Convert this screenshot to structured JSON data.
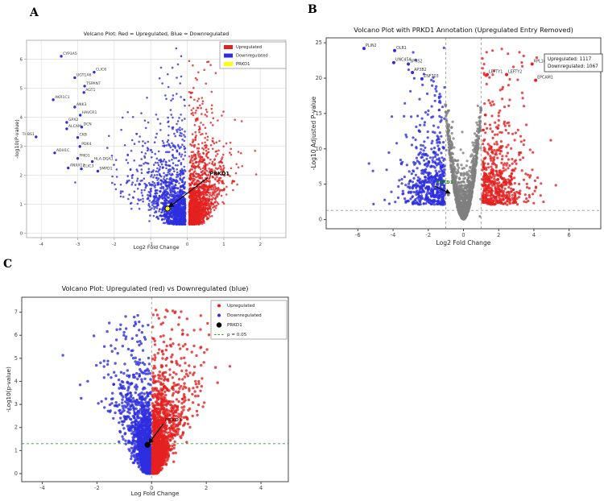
{
  "figure": {
    "panel_labels": [
      "A",
      "B",
      "C"
    ]
  },
  "colors": {
    "up": "#e32020",
    "down": "#2e2ee0",
    "neutral": "#7f7f7f",
    "prkd1_yellow": "#ffff00",
    "prkd1_black": "#000000",
    "prkd1_green_text": "#1a7d1a",
    "prkd1_darkred_text": "#8b0000",
    "threshold_gray": "#999999",
    "threshold_green": "#2ca02c",
    "grid": "#e3e3e3"
  },
  "chart_data": [
    {
      "id": "A",
      "type": "scatter",
      "title": "Volcano Plot: Red = Upregulated, Blue = Downregulated",
      "xlabel": "Log2 Fold Change",
      "ylabel": "-log10(P-value)",
      "xlim": [
        -4.4,
        2.7
      ],
      "ylim": [
        -0.15,
        6.65
      ],
      "xticks": [
        -4,
        -3,
        -2,
        -1,
        0,
        1,
        2
      ],
      "yticks": [
        0,
        1,
        2,
        3,
        4,
        5,
        6
      ],
      "grid": true,
      "legend": {
        "position": "top-right",
        "items": [
          {
            "label": "Upregulated",
            "marker": "patch",
            "color": "#e32020"
          },
          {
            "label": "Downregulated",
            "marker": "patch",
            "color": "#2e2ee0"
          },
          {
            "label": "PRKD1",
            "marker": "patch",
            "color": "#ffff00"
          }
        ]
      },
      "prkd1": {
        "label": "PRKD1",
        "label_color": "#000000",
        "label_x": 0.61,
        "label_y": 2.0,
        "point_x": -0.54,
        "point_y": 0.85,
        "marker_color": "#ffff00",
        "arrow": true
      },
      "labeled_points": [
        {
          "gene": "CYP3A5",
          "x": -3.45,
          "y": 6.1,
          "color": "down"
        },
        {
          "gene": "CLIC6",
          "x": -2.55,
          "y": 5.55,
          "color": "down"
        },
        {
          "gene": "UGT1A6",
          "x": -3.08,
          "y": 5.36,
          "color": "down"
        },
        {
          "gene": "TSPAN7",
          "x": -2.81,
          "y": 5.07,
          "color": "down"
        },
        {
          "gene": "AGT1",
          "x": -2.83,
          "y": 4.85,
          "color": "down"
        },
        {
          "gene": "AKR1C1",
          "x": -3.67,
          "y": 4.6,
          "color": "down"
        },
        {
          "gene": "ANK3",
          "x": -3.08,
          "y": 4.35,
          "color": "down"
        },
        {
          "gene": "HAVCR1",
          "x": -2.93,
          "y": 4.07,
          "color": "down"
        },
        {
          "gene": "GPX2",
          "x": -3.3,
          "y": 3.82,
          "color": "down"
        },
        {
          "gene": "DCN",
          "x": -2.89,
          "y": 3.66,
          "color": "down"
        },
        {
          "gene": "ALCAM",
          "x": -3.3,
          "y": 3.6,
          "color": "down"
        },
        {
          "gene": "THBS1",
          "x": -4.14,
          "y": 3.32,
          "color": "down",
          "anchor": "end"
        },
        {
          "gene": "CKB",
          "x": -3.0,
          "y": 3.3,
          "color": "down"
        },
        {
          "gene": "PDK4",
          "x": -2.94,
          "y": 2.99,
          "color": "down"
        },
        {
          "gene": "ADH1C",
          "x": -3.63,
          "y": 2.77,
          "color": "down"
        },
        {
          "gene": "FMO1",
          "x": -3.0,
          "y": 2.58,
          "color": "down"
        },
        {
          "gene": "HLA-DQA1",
          "x": -2.6,
          "y": 2.47,
          "color": "down"
        },
        {
          "gene": "ANXA13",
          "x": -3.26,
          "y": 2.25,
          "color": "down"
        },
        {
          "gene": "CLIC3",
          "x": -2.9,
          "y": 2.22,
          "color": "down"
        },
        {
          "gene": "SMPD1",
          "x": -2.45,
          "y": 2.14,
          "color": "down"
        },
        {
          "gene": "PTMA",
          "x": 1.0,
          "y": 6.05,
          "color": "up"
        }
      ],
      "generator": {
        "seed": 41,
        "clusters": [
          {
            "kind": "wedgeA",
            "color": "down",
            "side": -1,
            "n": 1400,
            "x_scale": 1.25,
            "x_abs_max": 4.4
          },
          {
            "kind": "wedgeA",
            "color": "up",
            "side": 1,
            "n": 1600,
            "x_scale": 0.8,
            "x_abs_max": 2.6
          }
        ]
      }
    },
    {
      "id": "B",
      "type": "scatter",
      "title": "Volcano Plot with PRKD1 Annotation (Upregulated Entry Removed)",
      "xlabel": "Log2 Fold Change",
      "ylabel": "-Log10 Adjusted P-value",
      "xlim": [
        -7.8,
        7.8
      ],
      "ylim": [
        -1.3,
        25.7
      ],
      "xticks": [
        -6,
        -4,
        -2,
        0,
        2,
        4,
        6
      ],
      "yticks": [
        0,
        5,
        10,
        15,
        20,
        25
      ],
      "grid": false,
      "vlines": {
        "x": [
          -1,
          1
        ],
        "color": "#999999",
        "style": "dashed"
      },
      "hlines": {
        "y": [
          1.3
        ],
        "color": "#999999",
        "style": "dashed"
      },
      "annotation_box": {
        "lines": [
          "Upregulated: 1117",
          "Downregulated: 1067"
        ]
      },
      "prkd1": {
        "label": "PRKD1",
        "label_color": "#1a7d1a",
        "label_x": -1.55,
        "label_y": 5.1,
        "point_x": -0.86,
        "point_y": 3.5,
        "marker_color": "#7f7f7f",
        "arrow": true
      },
      "labeled_points": [
        {
          "gene": "PLIN2",
          "x": -5.65,
          "y": 24.2,
          "color": "down"
        },
        {
          "gene": "OLR1",
          "x": -3.91,
          "y": 23.9,
          "color": "down"
        },
        {
          "gene": "UNC45A",
          "x": -3.96,
          "y": 22.2,
          "color": "down"
        },
        {
          "gene": "SPNS2",
          "x": -3.13,
          "y": 22.0,
          "color": "down"
        },
        {
          "gene": "AP3B2",
          "x": -2.9,
          "y": 20.8,
          "color": "down"
        },
        {
          "gene": "ZNF703",
          "x": -2.36,
          "y": 19.9,
          "color": "down"
        },
        {
          "gene": "LEFTY1",
          "x": 1.35,
          "y": 20.5,
          "color": "up"
        },
        {
          "gene": "LEFTY2",
          "x": 2.45,
          "y": 20.5,
          "color": "up"
        },
        {
          "gene": "RPL18",
          "x": 3.9,
          "y": 22.0,
          "color": "up"
        },
        {
          "gene": "EPCAM1",
          "x": 4.1,
          "y": 19.7,
          "color": "up"
        }
      ],
      "generator": {
        "seed": 77,
        "clusters": [
          {
            "kind": "sideB",
            "color": "down",
            "side": -1,
            "n": 560,
            "x_scale": 1.15,
            "x_abs_max": 7.2
          },
          {
            "kind": "sideB",
            "color": "up",
            "side": 1,
            "n": 580,
            "x_scale": 1.25,
            "x_abs_max": 7.4
          },
          {
            "kind": "grayB",
            "color": "neutral",
            "n": 1300,
            "a": 14.5,
            "p": 2.0,
            "noise": 1.6,
            "y_max": 16.5
          }
        ]
      }
    },
    {
      "id": "C",
      "type": "scatter",
      "title": "Volcano Plot: Upregulated (red) vs Downregulated (blue)",
      "xlabel": "Log Fold Change",
      "ylabel": "-Log10(p-value)",
      "xlim": [
        -4.75,
        5.0
      ],
      "ylim": [
        -0.35,
        7.65
      ],
      "xticks": [
        -4,
        -2,
        0,
        2,
        4
      ],
      "yticks": [
        0,
        1,
        2,
        3,
        4,
        5,
        6,
        7
      ],
      "grid": false,
      "vlines": {
        "x": [
          0
        ],
        "color": "#999999",
        "style": "dashed"
      },
      "hlines": {
        "y": [
          1.3
        ],
        "color": "#2ca02c",
        "style": "dashed"
      },
      "legend": {
        "position": "top-right",
        "items": [
          {
            "label": "Upregulated",
            "marker": "dot",
            "color": "#e32020"
          },
          {
            "label": "Downregulated",
            "marker": "dot",
            "color": "#2e2ee0"
          },
          {
            "label": "PRKD1",
            "marker": "dot-large",
            "color": "#000000"
          },
          {
            "label": "p = 0.05",
            "marker": "dashed",
            "color": "#2ca02c"
          }
        ]
      },
      "prkd1": {
        "label": "PRKD1",
        "label_color": "#8b0000",
        "label_x": 0.49,
        "label_y": 2.27,
        "point_x": -0.15,
        "point_y": 1.25,
        "marker_color": "#000000",
        "arrow": true
      },
      "labeled_points": [],
      "generator": {
        "seed": 9,
        "clusters": [
          {
            "kind": "wedgeC",
            "color": "down",
            "side": -1,
            "n": 1900,
            "x_abs_max": 4.5,
            "y_rate": 1.45,
            "y_max": 7.4
          },
          {
            "kind": "wedgeC",
            "color": "up",
            "side": 1,
            "n": 1900,
            "x_abs_max": 4.6,
            "y_rate": 1.45,
            "y_max": 7.4
          }
        ]
      }
    }
  ]
}
